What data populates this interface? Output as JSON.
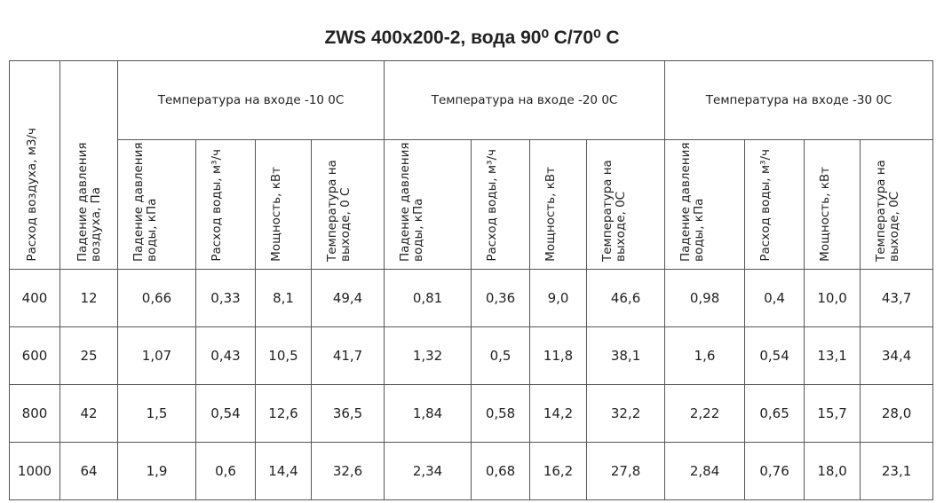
{
  "title": "ZWS 400x200-2, вода 90⁰ C/70⁰ C",
  "table": {
    "headers": {
      "air_flow": "Расход воздуха, м3/ч",
      "air_pressure_drop": "Падение давления воздуха, Па",
      "groups": [
        {
          "label": "Температура на входе -10 0С",
          "columns": [
            "Падение давления воды, кПа",
            "Расход воды, м³/ч",
            "Мощность, кВт",
            "Температура на выходе, 0 С"
          ]
        },
        {
          "label": "Температура на входе -20 0С",
          "columns": [
            "Падение давления воды, кПа",
            "Расход воды, м³/ч",
            "Мощность, кВт",
            "Температура на выходе, 0С"
          ]
        },
        {
          "label": "Температура на входе -30 0С",
          "columns": [
            "Падение давления воды, кПа",
            "Расход воды, м³/ч",
            "Мощность, кВт",
            "Температура на выходе, 0С"
          ]
        }
      ]
    },
    "rows": [
      [
        "400",
        "12",
        "0,66",
        "0,33",
        "8,1",
        "49,4",
        "0,81",
        "0,36",
        "9,0",
        "46,6",
        "0,98",
        "0,4",
        "10,0",
        "43,7"
      ],
      [
        "600",
        "25",
        "1,07",
        "0,43",
        "10,5",
        "41,7",
        "1,32",
        "0,5",
        "11,8",
        "38,1",
        "1,6",
        "0,54",
        "13,1",
        "34,4"
      ],
      [
        "800",
        "42",
        "1,5",
        "0,54",
        "12,6",
        "36,5",
        "1,84",
        "0,58",
        "14,2",
        "32,2",
        "2,22",
        "0,65",
        "15,7",
        "28,0"
      ],
      [
        "1000",
        "64",
        "1,9",
        "0,6",
        "14,4",
        "32,6",
        "2,34",
        "0,68",
        "16,2",
        "27,8",
        "2,84",
        "0,76",
        "18,0",
        "23,1"
      ]
    ]
  }
}
